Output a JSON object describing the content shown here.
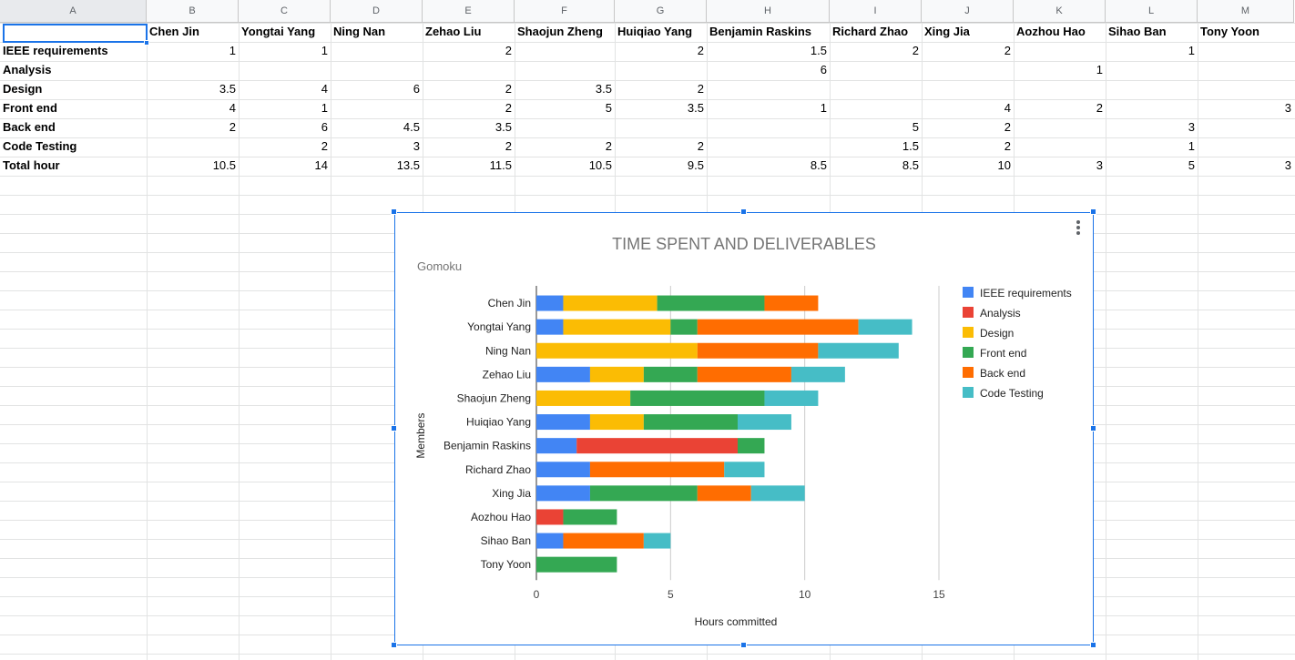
{
  "sheet": {
    "columns": [
      "A",
      "B",
      "C",
      "D",
      "E",
      "F",
      "G",
      "H",
      "I",
      "J",
      "K",
      "L",
      "M"
    ],
    "header_row": [
      "",
      "Chen Jin",
      "Yongtai Yang",
      "Ning Nan",
      "Zehao Liu",
      "Shaojun Zheng",
      "Huiqiao Yang",
      "Benjamin Raskins",
      "Richard Zhao",
      "Xing Jia",
      "Aozhou Hao",
      "Sihao Ban",
      "Tony Yoon"
    ],
    "rows": [
      {
        "label": "IEEE requirements",
        "values": [
          "1",
          "1",
          "",
          "2",
          "",
          "2",
          "1.5",
          "2",
          "2",
          "",
          "1",
          ""
        ]
      },
      {
        "label": "Analysis",
        "values": [
          "",
          "",
          "",
          "",
          "",
          "",
          "6",
          "",
          "",
          "1",
          "",
          ""
        ]
      },
      {
        "label": "Design",
        "values": [
          "3.5",
          "4",
          "6",
          "2",
          "3.5",
          "2",
          "",
          "",
          "",
          "",
          "",
          ""
        ]
      },
      {
        "label": "Front end",
        "values": [
          "4",
          "1",
          "",
          "2",
          "5",
          "3.5",
          "1",
          "",
          "4",
          "2",
          "",
          "3"
        ]
      },
      {
        "label": "Back end",
        "values": [
          "2",
          "6",
          "4.5",
          "3.5",
          "",
          "",
          "",
          "5",
          "2",
          "",
          "3",
          ""
        ]
      },
      {
        "label": "Code Testing",
        "values": [
          "",
          "2",
          "3",
          "2",
          "2",
          "2",
          "",
          "1.5",
          "2",
          "",
          "1",
          ""
        ]
      },
      {
        "label": "Total hour",
        "values": [
          "10.5",
          "14",
          "13.5",
          "11.5",
          "10.5",
          "9.5",
          "8.5",
          "8.5",
          "10",
          "3",
          "5",
          "3"
        ]
      }
    ]
  },
  "chart_data": {
    "type": "bar",
    "orientation": "horizontal",
    "stacked": true,
    "title": "TIME SPENT AND DELIVERABLES",
    "subtitle": "Gomoku",
    "xlabel": "Hours committed",
    "ylabel": "Members",
    "xlim": [
      0,
      15
    ],
    "xticks": [
      0,
      5,
      10,
      15
    ],
    "grid": true,
    "legend_position": "right",
    "categories": [
      "Chen Jin",
      "Yongtai Yang",
      "Ning Nan",
      "Zehao Liu",
      "Shaojun Zheng",
      "Huiqiao Yang",
      "Benjamin Raskins",
      "Richard Zhao",
      "Xing Jia",
      "Aozhou Hao",
      "Sihao Ban",
      "Tony Yoon"
    ],
    "series": [
      {
        "name": "IEEE requirements",
        "color": "#4285f4",
        "values": [
          1,
          1,
          0,
          2,
          0,
          2,
          1.5,
          2,
          2,
          0,
          1,
          0
        ]
      },
      {
        "name": "Analysis",
        "color": "#ea4335",
        "values": [
          0,
          0,
          0,
          0,
          0,
          0,
          6,
          0,
          0,
          1,
          0,
          0
        ]
      },
      {
        "name": "Design",
        "color": "#fbbc04",
        "values": [
          3.5,
          4,
          6,
          2,
          3.5,
          2,
          0,
          0,
          0,
          0,
          0,
          0
        ]
      },
      {
        "name": "Front end",
        "color": "#34a853",
        "values": [
          4,
          1,
          0,
          2,
          5,
          3.5,
          1,
          0,
          4,
          2,
          0,
          3
        ]
      },
      {
        "name": "Back end",
        "color": "#ff6d01",
        "values": [
          2,
          6,
          4.5,
          3.5,
          0,
          0,
          0,
          5,
          2,
          0,
          3,
          0
        ]
      },
      {
        "name": "Code Testing",
        "color": "#46bdc6",
        "values": [
          0,
          2,
          3,
          2,
          2,
          2,
          0,
          1.5,
          2,
          0,
          1,
          0
        ]
      }
    ]
  }
}
